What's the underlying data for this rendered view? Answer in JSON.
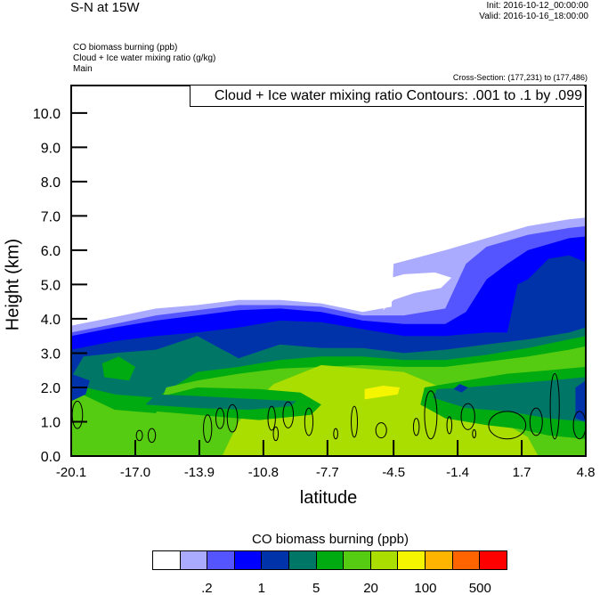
{
  "header": {
    "title": "S-N at 15W",
    "init": "Init: 2016-10-12_00:00:00",
    "valid": "Valid: 2016-10-16_18:00:00",
    "field1": "CO biomass burning   (ppb)",
    "field2": "Cloud + Ice water mixing ratio   (g/kg)",
    "field3": "Main",
    "cross_section": "Cross-Section: (177,231) to (177,486)"
  },
  "chart_data": {
    "type": "heatmap",
    "title": "S-N at 15W",
    "xlabel": "latitude",
    "ylabel": "Height (km)",
    "xlim": [
      -20.1,
      4.8
    ],
    "ylim": [
      0,
      10.8
    ],
    "xticks": [
      "-20.1",
      "-17.0",
      "-13.9",
      "-10.8",
      "-7.7",
      "-4.5",
      "-1.4",
      "1.7",
      "4.8"
    ],
    "xtick_values": [
      -20.1,
      -17.0,
      -13.9,
      -10.8,
      -7.7,
      -4.5,
      -1.4,
      1.7,
      4.8
    ],
    "yticks": [
      "0.0",
      "1.0",
      "2.0",
      "3.0",
      "4.0",
      "5.0",
      "6.0",
      "7.0",
      "8.0",
      "9.0",
      "10.0"
    ],
    "contour_label": "Cloud + Ice water mixing ratio Contours: .001 to .1 by .099",
    "colorbar": {
      "title": "CO biomass burning  (ppb)",
      "colors": [
        "#ffffff",
        "#aaaaff",
        "#5555ff",
        "#0000ff",
        "#0033aa",
        "#007766",
        "#00aa11",
        "#55cc11",
        "#aadd00",
        "#f5f500",
        "#ffb400",
        "#ff6400",
        "#ff0000"
      ],
      "labels": [
        ".2",
        "1",
        "5",
        "20",
        "100",
        "500"
      ]
    },
    "co_level_tops": [
      {
        "color": "#aaaaff",
        "profile": [
          [
            -20.1,
            3.8
          ],
          [
            -18,
            4.05
          ],
          [
            -16,
            4.3
          ],
          [
            -14,
            4.4
          ],
          [
            -12,
            4.55
          ],
          [
            -10,
            4.55
          ],
          [
            -8,
            4.45
          ],
          [
            -6,
            4.2
          ],
          [
            -4.6,
            4.35
          ],
          [
            -4.5,
            5.6
          ],
          [
            -2,
            6.0
          ],
          [
            0,
            6.35
          ],
          [
            2,
            6.7
          ],
          [
            4,
            6.9
          ],
          [
            4.8,
            6.95
          ]
        ]
      },
      {
        "color": "#5555ff",
        "profile": [
          [
            -20.1,
            3.6
          ],
          [
            -18,
            3.85
          ],
          [
            -16,
            4.1
          ],
          [
            -14,
            4.25
          ],
          [
            -12,
            4.4
          ],
          [
            -10,
            4.4
          ],
          [
            -8,
            4.35
          ],
          [
            -6,
            4.1
          ],
          [
            -4,
            4.1
          ],
          [
            -2,
            4.3
          ],
          [
            -1,
            5.6
          ],
          [
            0,
            6.1
          ],
          [
            2,
            6.45
          ],
          [
            4,
            6.65
          ],
          [
            4.8,
            6.7
          ]
        ]
      },
      {
        "color": "#0000ff",
        "profile": [
          [
            -20.1,
            3.5
          ],
          [
            -18,
            3.75
          ],
          [
            -16,
            3.95
          ],
          [
            -14,
            4.1
          ],
          [
            -12,
            4.25
          ],
          [
            -10,
            4.3
          ],
          [
            -8,
            4.2
          ],
          [
            -6,
            3.95
          ],
          [
            -4,
            3.85
          ],
          [
            -2,
            3.85
          ],
          [
            -1,
            4.2
          ],
          [
            0,
            5.15
          ],
          [
            1,
            5.6
          ],
          [
            2,
            6.0
          ],
          [
            4,
            6.35
          ],
          [
            4.8,
            6.4
          ]
        ]
      },
      {
        "color": "#0033aa",
        "profile": [
          [
            -20.1,
            3.1
          ],
          [
            -18,
            3.35
          ],
          [
            -16,
            3.5
          ],
          [
            -14,
            3.6
          ],
          [
            -12,
            3.75
          ],
          [
            -10,
            3.95
          ],
          [
            -8,
            3.9
          ],
          [
            -6,
            3.7
          ],
          [
            -4,
            3.5
          ],
          [
            -2,
            3.5
          ],
          [
            0,
            3.6
          ],
          [
            1,
            3.6
          ],
          [
            1.5,
            5.0
          ],
          [
            2,
            5.15
          ],
          [
            3,
            5.75
          ],
          [
            4,
            5.85
          ],
          [
            4.8,
            5.65
          ]
        ]
      },
      {
        "color": "#007766",
        "profile": [
          [
            -20.1,
            2.3
          ],
          [
            -19.5,
            2.9
          ],
          [
            -18,
            3.0
          ],
          [
            -16,
            3.1
          ],
          [
            -14,
            3.5
          ],
          [
            -12,
            2.85
          ],
          [
            -10,
            3.25
          ],
          [
            -8,
            3.15
          ],
          [
            -6,
            3.15
          ],
          [
            -4,
            3.0
          ],
          [
            -2,
            3.1
          ],
          [
            0,
            3.25
          ],
          [
            2,
            3.4
          ],
          [
            4,
            3.6
          ],
          [
            4.8,
            3.75
          ]
        ]
      },
      {
        "color": "#00aa11",
        "profile": [
          [
            -20.1,
            2.1
          ],
          [
            -18,
            1.8
          ],
          [
            -16,
            1.7
          ],
          [
            -14,
            2.45
          ],
          [
            -12,
            2.6
          ],
          [
            -10,
            2.8
          ],
          [
            -8,
            2.9
          ],
          [
            -6,
            2.9
          ],
          [
            -4,
            2.8
          ],
          [
            -2,
            2.8
          ],
          [
            0,
            2.95
          ],
          [
            2,
            3.15
          ],
          [
            4,
            3.4
          ],
          [
            4.8,
            3.5
          ]
        ]
      },
      {
        "color": "#55cc11",
        "profile": [
          [
            -20.1,
            1.95
          ],
          [
            -18,
            1.35
          ],
          [
            -16,
            1.25
          ],
          [
            -15.5,
            2.0
          ],
          [
            -14,
            2.2
          ],
          [
            -12,
            2.4
          ],
          [
            -10,
            2.55
          ],
          [
            -8,
            2.6
          ],
          [
            -6,
            2.65
          ],
          [
            -4,
            2.6
          ],
          [
            -2,
            2.6
          ],
          [
            0,
            2.75
          ],
          [
            2,
            2.9
          ],
          [
            4,
            3.1
          ],
          [
            4.8,
            3.2
          ]
        ]
      },
      {
        "color": "#aadd00",
        "profile": [
          [
            -12.8,
            0
          ],
          [
            -12,
            1.0
          ],
          [
            -11,
            1.7
          ],
          [
            -10.3,
            2.1
          ],
          [
            -8,
            2.65
          ],
          [
            -6,
            2.55
          ],
          [
            -4,
            2.45
          ],
          [
            -2,
            1.95
          ],
          [
            -1,
            1.4
          ],
          [
            0,
            1.25
          ],
          [
            1,
            0.9
          ],
          [
            2,
            0.55
          ],
          [
            2.5,
            0
          ]
        ]
      }
    ],
    "co_patches": [
      {
        "color": "#00aa11",
        "points": [
          [
            -16,
            1.3
          ],
          [
            -14,
            1.2
          ],
          [
            -11,
            1.05
          ],
          [
            -8.5,
            1.2
          ],
          [
            -8,
            1.5
          ],
          [
            -9,
            1.85
          ],
          [
            -11,
            1.95
          ],
          [
            -14,
            2.0
          ],
          [
            -16,
            1.7
          ]
        ]
      },
      {
        "color": "#007766",
        "points": [
          [
            -16.5,
            1.5
          ],
          [
            -14,
            1.4
          ],
          [
            -11.5,
            1.35
          ],
          [
            -9.5,
            1.45
          ],
          [
            -9.2,
            1.6
          ],
          [
            -11,
            1.65
          ],
          [
            -14,
            1.75
          ],
          [
            -16,
            1.8
          ]
        ]
      },
      {
        "color": "#00aa11",
        "points": [
          [
            -18.5,
            2.3
          ],
          [
            -17.3,
            2.2
          ],
          [
            -17,
            2.6
          ],
          [
            -17.8,
            2.9
          ],
          [
            -18.6,
            2.7
          ]
        ]
      },
      {
        "color": "#0033aa",
        "points": [
          [
            -20.1,
            1.6
          ],
          [
            -19.4,
            1.8
          ],
          [
            -19.2,
            2.2
          ],
          [
            -20.1,
            2.4
          ]
        ]
      },
      {
        "color": "#00aa11",
        "points": [
          [
            -3.2,
            1.5
          ],
          [
            -2,
            1.1
          ],
          [
            0,
            0.9
          ],
          [
            1.5,
            0.8
          ],
          [
            3,
            0.6
          ],
          [
            4.8,
            0.5
          ],
          [
            4.8,
            2.6
          ],
          [
            3,
            2.5
          ],
          [
            1,
            2.4
          ],
          [
            -1,
            2.2
          ],
          [
            -3,
            2.0
          ]
        ]
      },
      {
        "color": "#007766",
        "points": [
          [
            -2.6,
            1.7
          ],
          [
            -1,
            1.4
          ],
          [
            1,
            1.3
          ],
          [
            3,
            1.1
          ],
          [
            4.8,
            1.0
          ],
          [
            4.8,
            2.3
          ],
          [
            3,
            2.2
          ],
          [
            1,
            2.1
          ],
          [
            -1,
            2.0
          ],
          [
            -2.4,
            1.95
          ]
        ]
      },
      {
        "color": "#0033aa",
        "points": [
          [
            4.3,
            1.1
          ],
          [
            4.8,
            1.0
          ],
          [
            4.8,
            2.2
          ],
          [
            4.3,
            2.0
          ]
        ]
      },
      {
        "color": "#0033aa",
        "points": [
          [
            -1.6,
            1.95
          ],
          [
            -1.2,
            1.85
          ],
          [
            -0.9,
            2.0
          ],
          [
            -1.3,
            2.1
          ]
        ]
      },
      {
        "color": "#f5f500",
        "points": [
          [
            -5.9,
            1.65
          ],
          [
            -4.3,
            1.8
          ],
          [
            -4.2,
            2.0
          ],
          [
            -5,
            2.05
          ],
          [
            -5.9,
            1.95
          ]
        ]
      }
    ],
    "white_pocket": [
      [
        -5.0,
        4.25
      ],
      [
        -4.5,
        4.55
      ],
      [
        -3.5,
        4.75
      ],
      [
        -2.2,
        4.9
      ],
      [
        -1.7,
        5.2
      ],
      [
        -2.5,
        5.35
      ],
      [
        -4,
        5.3
      ],
      [
        -4.6,
        5.2
      ],
      [
        -4.9,
        4.7
      ]
    ],
    "cloud_contours": [
      {
        "lat": -19.8,
        "h": 1.2,
        "rx": 0.25,
        "ry": 0.4
      },
      {
        "lat": -16.8,
        "h": 0.6,
        "rx": 0.15,
        "ry": 0.15
      },
      {
        "lat": -16.2,
        "h": 0.6,
        "rx": 0.18,
        "ry": 0.2
      },
      {
        "lat": -13.5,
        "h": 0.8,
        "rx": 0.2,
        "ry": 0.4
      },
      {
        "lat": -12.9,
        "h": 1.1,
        "rx": 0.2,
        "ry": 0.3
      },
      {
        "lat": -12.3,
        "h": 1.1,
        "rx": 0.25,
        "ry": 0.4
      },
      {
        "lat": -10.4,
        "h": 1.1,
        "rx": 0.18,
        "ry": 0.35
      },
      {
        "lat": -10.2,
        "h": 0.65,
        "rx": 0.12,
        "ry": 0.2
      },
      {
        "lat": -9.6,
        "h": 1.2,
        "rx": 0.25,
        "ry": 0.38
      },
      {
        "lat": -8.6,
        "h": 1.0,
        "rx": 0.2,
        "ry": 0.4
      },
      {
        "lat": -7.3,
        "h": 0.65,
        "rx": 0.1,
        "ry": 0.15
      },
      {
        "lat": -6.4,
        "h": 1.0,
        "rx": 0.15,
        "ry": 0.45
      },
      {
        "lat": -5.1,
        "h": 0.75,
        "rx": 0.26,
        "ry": 0.22
      },
      {
        "lat": -3.4,
        "h": 0.85,
        "rx": 0.14,
        "ry": 0.25
      },
      {
        "lat": -2.7,
        "h": 1.2,
        "rx": 0.3,
        "ry": 0.7
      },
      {
        "lat": -1.8,
        "h": 0.9,
        "rx": 0.12,
        "ry": 0.25
      },
      {
        "lat": -0.9,
        "h": 1.15,
        "rx": 0.33,
        "ry": 0.38
      },
      {
        "lat": -0.6,
        "h": 0.65,
        "rx": 0.08,
        "ry": 0.12
      },
      {
        "lat": 1.0,
        "h": 0.9,
        "rx": 0.9,
        "ry": 0.4
      },
      {
        "lat": 2.4,
        "h": 1.0,
        "rx": 0.3,
        "ry": 0.4
      },
      {
        "lat": 3.3,
        "h": 1.45,
        "rx": 0.22,
        "ry": 0.95
      },
      {
        "lat": 4.5,
        "h": 0.9,
        "rx": 0.3,
        "ry": 0.4
      }
    ]
  }
}
